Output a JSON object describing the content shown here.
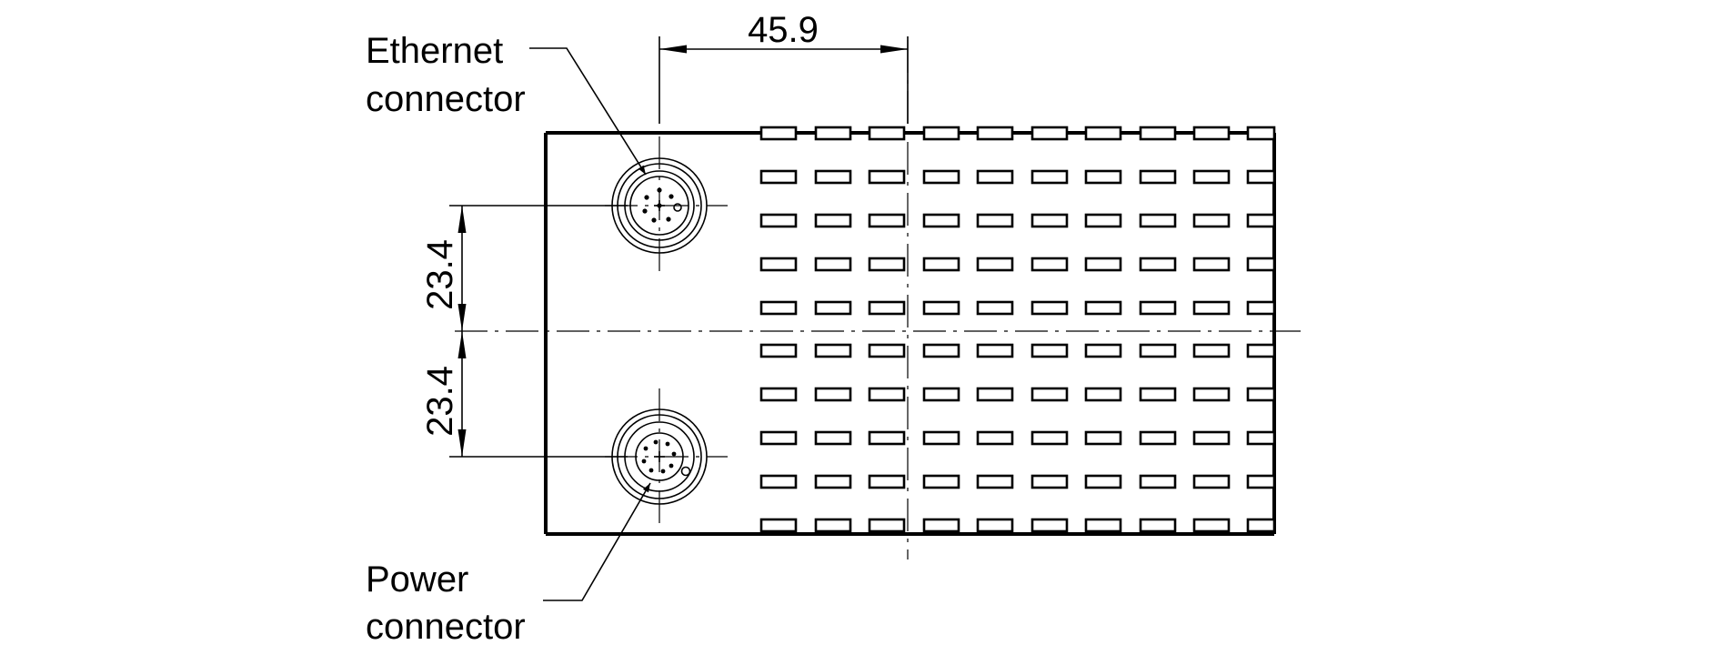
{
  "labels": {
    "ethernet_line1": "Ethernet",
    "ethernet_line2": "connector",
    "power_line1": "Power",
    "power_line2": "connector"
  },
  "dimensions": {
    "horizontal": "45.9",
    "vertical_top": "23.4",
    "vertical_bottom": "23.4"
  },
  "colors": {
    "line": "#000000",
    "background": "#ffffff"
  },
  "icons": {
    "ethernet": "m12-circular-connector-icon",
    "power": "m12-circular-connector-icon"
  }
}
